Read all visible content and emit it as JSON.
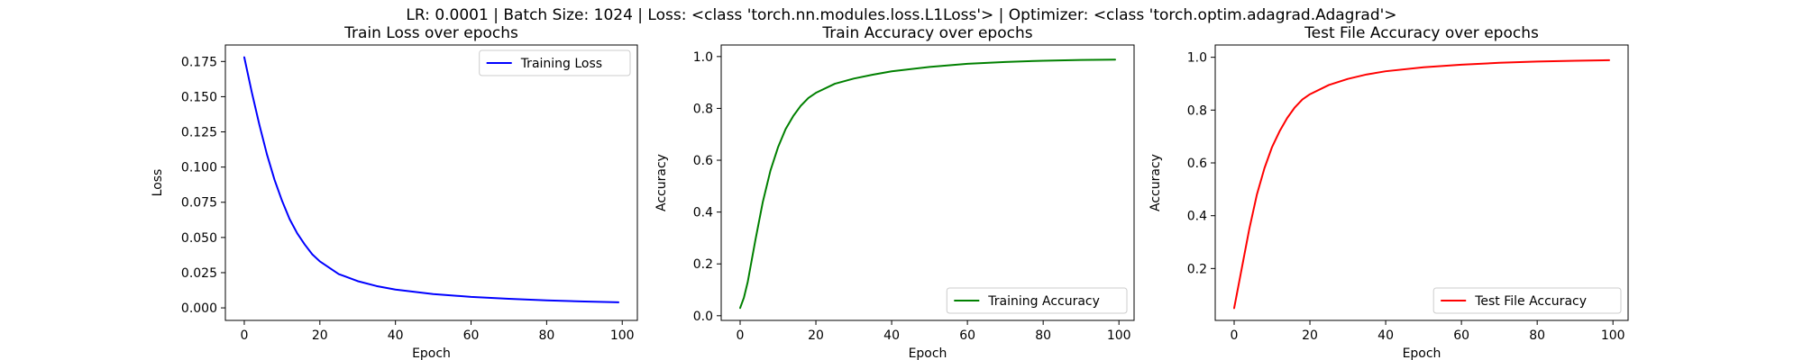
{
  "figure": {
    "suptitle": "LR: 0.0001 | Batch Size: 1024 | Loss: <class 'torch.nn.modules.loss.L1Loss'> | Optimizer: <class 'torch.optim.adagrad.Adagrad'>"
  },
  "chart_data": [
    {
      "type": "line",
      "title": "Train Loss over epochs",
      "xlabel": "Epoch",
      "ylabel": "Loss",
      "xlim": [
        -5,
        104
      ],
      "ylim": [
        -0.0089,
        0.1867
      ],
      "xticks": [
        0,
        20,
        40,
        60,
        80,
        100
      ],
      "yticks": [
        0.0,
        0.025,
        0.05,
        0.075,
        0.1,
        0.125,
        0.15,
        0.175
      ],
      "ytick_labels": [
        "0.000",
        "0.025",
        "0.050",
        "0.075",
        "0.100",
        "0.125",
        "0.150",
        "0.175"
      ],
      "xtick_labels": [
        "0",
        "20",
        "40",
        "60",
        "80",
        "100"
      ],
      "legend": "upper right",
      "grid": false,
      "series": [
        {
          "name": "Training Loss",
          "color": "#0000ff",
          "x": [
            0,
            2,
            4,
            6,
            8,
            10,
            12,
            14,
            16,
            18,
            20,
            25,
            30,
            35,
            40,
            50,
            60,
            70,
            80,
            90,
            99
          ],
          "y": [
            0.178,
            0.153,
            0.13,
            0.109,
            0.091,
            0.076,
            0.063,
            0.053,
            0.045,
            0.038,
            0.033,
            0.024,
            0.019,
            0.0155,
            0.013,
            0.0098,
            0.0078,
            0.0064,
            0.0053,
            0.0045,
            0.004
          ]
        }
      ]
    },
    {
      "type": "line",
      "title": "Train Accuracy over epochs",
      "xlabel": "Epoch",
      "ylabel": "Accuracy",
      "xlim": [
        -5,
        104
      ],
      "ylim": [
        -0.018,
        1.0446
      ],
      "xticks": [
        0,
        20,
        40,
        60,
        80,
        100
      ],
      "yticks": [
        0.0,
        0.2,
        0.4,
        0.6,
        0.8,
        1.0
      ],
      "ytick_labels": [
        "0.0",
        "0.2",
        "0.4",
        "0.6",
        "0.8",
        "1.0"
      ],
      "xtick_labels": [
        "0",
        "20",
        "40",
        "60",
        "80",
        "100"
      ],
      "legend": "lower right",
      "grid": false,
      "series": [
        {
          "name": "Training Accuracy",
          "color": "#008000",
          "x": [
            0,
            1,
            2,
            4,
            6,
            8,
            10,
            12,
            14,
            16,
            18,
            20,
            25,
            30,
            35,
            40,
            50,
            60,
            70,
            80,
            90,
            99
          ],
          "y": [
            0.03,
            0.07,
            0.13,
            0.29,
            0.44,
            0.56,
            0.65,
            0.72,
            0.77,
            0.81,
            0.84,
            0.86,
            0.895,
            0.915,
            0.93,
            0.943,
            0.96,
            0.972,
            0.979,
            0.984,
            0.987,
            0.988
          ]
        }
      ]
    },
    {
      "type": "line",
      "title": "Test File Accuracy over epochs",
      "xlabel": "Epoch",
      "ylabel": "Accuracy",
      "xlim": [
        -5,
        104
      ],
      "ylim": [
        0.0035,
        1.0465
      ],
      "xticks": [
        0,
        20,
        40,
        60,
        80,
        100
      ],
      "yticks": [
        0.2,
        0.4,
        0.6,
        0.8,
        1.0
      ],
      "ytick_labels": [
        "0.2",
        "0.4",
        "0.6",
        "0.8",
        "1.0"
      ],
      "xtick_labels": [
        "0",
        "20",
        "40",
        "60",
        "80",
        "100"
      ],
      "legend": "lower right",
      "grid": false,
      "series": [
        {
          "name": "Test File Accuracy",
          "color": "#ff0000",
          "x": [
            0,
            2,
            4,
            6,
            8,
            10,
            12,
            14,
            16,
            18,
            20,
            25,
            30,
            35,
            40,
            50,
            60,
            70,
            80,
            90,
            99
          ],
          "y": [
            0.05,
            0.2,
            0.35,
            0.48,
            0.58,
            0.66,
            0.72,
            0.77,
            0.81,
            0.84,
            0.86,
            0.895,
            0.918,
            0.935,
            0.947,
            0.962,
            0.972,
            0.979,
            0.984,
            0.987,
            0.989
          ]
        }
      ]
    }
  ]
}
